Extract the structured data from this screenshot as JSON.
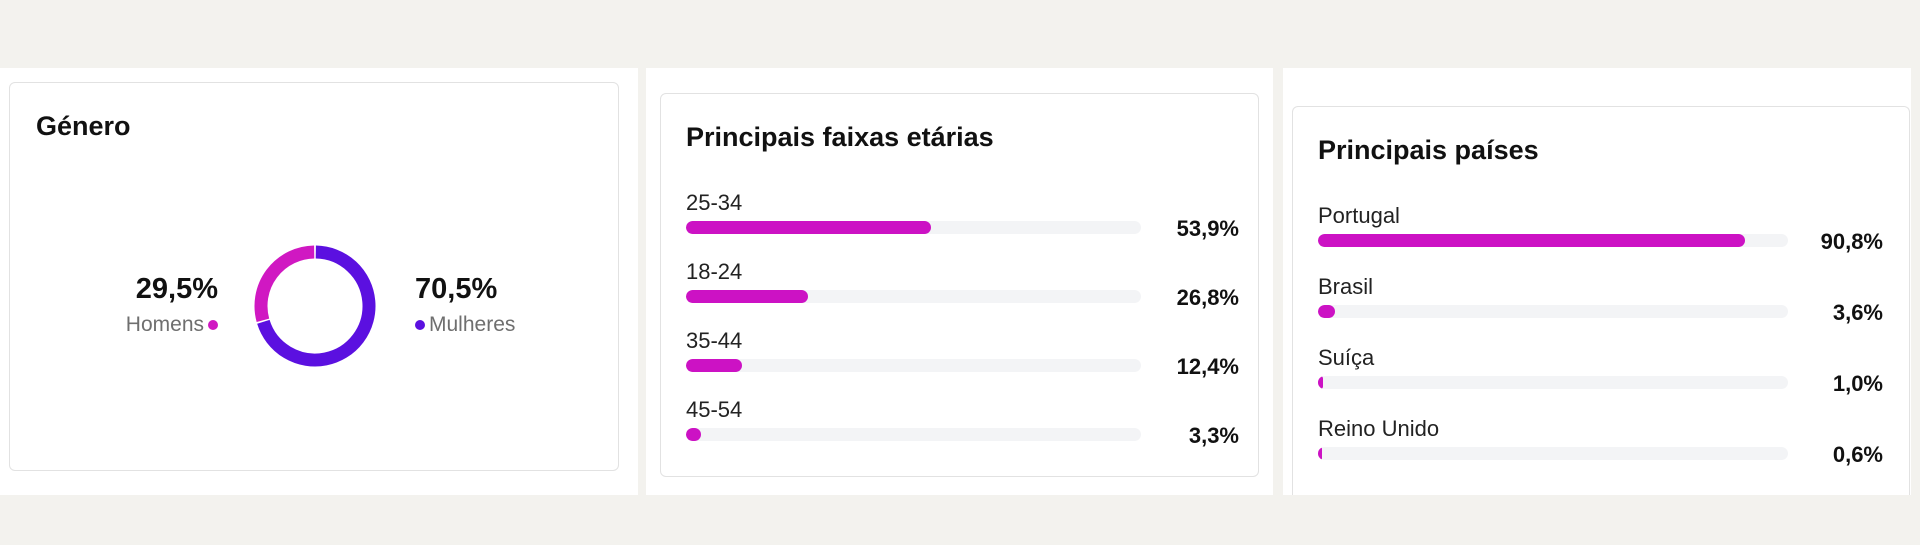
{
  "colors": {
    "bar_fill": "#cc12c4",
    "track": "#f3f4f6",
    "men": "#d018c2",
    "women": "#5b10e0"
  },
  "gender": {
    "title": "Género",
    "men_value": "29,5%",
    "men_label": "Homens",
    "women_value": "70,5%",
    "women_label": "Mulheres"
  },
  "ages": {
    "title": "Principais faixas etárias"
  },
  "countries": {
    "title": "Principais países"
  },
  "chart_data": [
    {
      "type": "pie",
      "title": "Género",
      "categories": [
        "Homens",
        "Mulheres"
      ],
      "values": [
        29.5,
        70.5
      ],
      "labels": [
        "29,5%",
        "70,5%"
      ],
      "colors": [
        "#d018c2",
        "#5b10e0"
      ]
    },
    {
      "type": "bar",
      "title": "Principais faixas etárias",
      "categories": [
        "25-34",
        "18-24",
        "35-44",
        "45-54"
      ],
      "values": [
        53.9,
        26.8,
        12.4,
        3.3
      ],
      "labels": [
        "53,9%",
        "26,8%",
        "12,4%",
        "3,3%"
      ],
      "ylim": [
        0,
        100
      ]
    },
    {
      "type": "bar",
      "title": "Principais países",
      "categories": [
        "Portugal",
        "Brasil",
        "Suíça",
        "Reino Unido"
      ],
      "values": [
        90.8,
        3.6,
        1.0,
        0.6
      ],
      "labels": [
        "90,8%",
        "3,6%",
        "1,0%",
        "0,6%"
      ],
      "ylim": [
        0,
        100
      ]
    }
  ]
}
